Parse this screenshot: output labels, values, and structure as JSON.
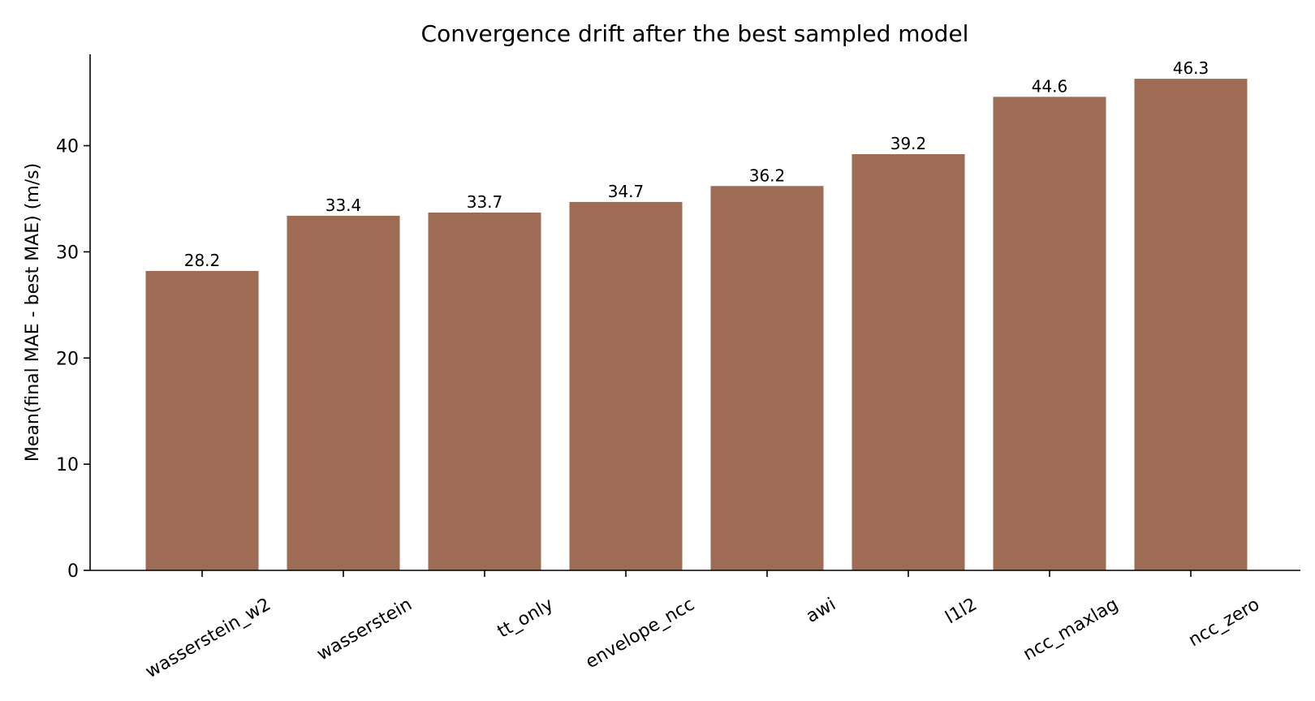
{
  "chart_data": {
    "type": "bar",
    "title": "Convergence drift after the best sampled model",
    "xlabel": "",
    "ylabel": "Mean(final MAE - best MAE) (m/s)",
    "categories": [
      "wasserstein_w2",
      "wasserstein",
      "tt_only",
      "envelope_ncc",
      "awi",
      "l1l2",
      "ncc_maxlag",
      "ncc_zero"
    ],
    "values": [
      28.2,
      33.4,
      33.7,
      34.7,
      36.2,
      39.2,
      44.6,
      46.3
    ],
    "data_labels": [
      "28.2",
      "33.4",
      "33.7",
      "34.7",
      "36.2",
      "39.2",
      "44.6",
      "46.3"
    ],
    "yticks": [
      0,
      10,
      20,
      30,
      40
    ],
    "ytick_labels": [
      "0",
      "10",
      "20",
      "30",
      "40"
    ],
    "ylim": [
      0,
      48.6
    ],
    "grid": false,
    "bar_color": "#9e6c55"
  }
}
